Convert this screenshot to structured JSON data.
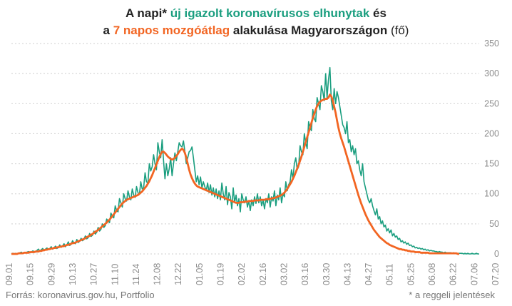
{
  "title": {
    "line1_prefix": "A napi* ",
    "line1_highlight": "új igazolt koronavírusos elhunytak",
    "line1_suffix": " és",
    "line2_prefix": "a ",
    "line2_highlight": "7 napos mozgóátlag",
    "line2_suffix": " alakulása Magyarországon ",
    "line2_unit": "(fő)"
  },
  "footer": {
    "source": "Forrás: koronavirus.gov.hu, Portfolio",
    "note": "* a reggeli jelentések"
  },
  "colors": {
    "daily": "#1a9e7f",
    "avg": "#f26522"
  },
  "chart_data": {
    "type": "line",
    "x_start": "2020.09.01",
    "xlabel": "",
    "ylabel": "",
    "ylim": [
      0,
      350
    ],
    "grid": true,
    "y_ticks": [
      "0",
      "50",
      "100",
      "150",
      "200",
      "250",
      "300",
      "350"
    ],
    "x_ticks": [
      "09.01",
      "09.15",
      "09.29",
      "10.13",
      "10.27",
      "11.10",
      "11.24",
      "12.08",
      "12.22",
      "01.05",
      "01.19",
      "02.02",
      "02.16",
      "03.02",
      "03.16",
      "03.30",
      "04.13",
      "04.27",
      "05.11",
      "05.25",
      "06.08",
      "06.22",
      "07.06",
      "07.20"
    ],
    "series": [
      {
        "name": "új igazolt koronavírusos elhunytak",
        "values": [
          0,
          1,
          0,
          1,
          0,
          1,
          2,
          3,
          1,
          2,
          2,
          3,
          4,
          2,
          3,
          5,
          4,
          3,
          6,
          8,
          5,
          7,
          9,
          6,
          8,
          10,
          7,
          9,
          12,
          8,
          10,
          13,
          9,
          11,
          15,
          11,
          13,
          17,
          12,
          15,
          20,
          14,
          16,
          22,
          18,
          17,
          24,
          19,
          21,
          26,
          22,
          24,
          30,
          25,
          27,
          34,
          29,
          31,
          38,
          33,
          36,
          44,
          38,
          41,
          50,
          44,
          47,
          58,
          55,
          52,
          68,
          62,
          60,
          80,
          72,
          70,
          92,
          85,
          78,
          100,
          92,
          88,
          105,
          95,
          90,
          108,
          98,
          94,
          112,
          102,
          99,
          120,
          108,
          110,
          135,
          120,
          118,
          150,
          138,
          145,
          165,
          150,
          140,
          185,
          170,
          160,
          190,
          155,
          125,
          150,
          130,
          142,
          160,
          130,
          150,
          168,
          155,
          170,
          185,
          180,
          178,
          188,
          170,
          150,
          160,
          170,
          172,
          178,
          160,
          140,
          120,
          130,
          115,
          128,
          110,
          120,
          112,
          105,
          118,
          102,
          115,
          98,
          110,
          95,
          108,
          92,
          105,
          90,
          118,
          100,
          90,
          112,
          82,
          102,
          95,
          75,
          110,
          85,
          98,
          80,
          92,
          70,
          100,
          90,
          85,
          95,
          78,
          88,
          72,
          90,
          80,
          95,
          84,
          100,
          85,
          95,
          80,
          90,
          75,
          92,
          85,
          100,
          78,
          95,
          88,
          105,
          80,
          98,
          90,
          110,
          85,
          100,
          95,
          120,
          105,
          115,
          120,
          140,
          125,
          150,
          160,
          140,
          145,
          180,
          170,
          165,
          200,
          185,
          175,
          220,
          210,
          205,
          240,
          225,
          220,
          260,
          250,
          240,
          280,
          270,
          255,
          300,
          260,
          290,
          310,
          255,
          240,
          275,
          250,
          270,
          260,
          245,
          230,
          215,
          210,
          200,
          220,
          185,
          190,
          170,
          180,
          165,
          175,
          150,
          155,
          140,
          130,
          150,
          120,
          110,
          100,
          90,
          85,
          92,
          80,
          72,
          65,
          75,
          58,
          62,
          50,
          55,
          45,
          48,
          38,
          42,
          35,
          40,
          30,
          34,
          28,
          30,
          24,
          26,
          20,
          22,
          18,
          20,
          16,
          18,
          14,
          15,
          12,
          13,
          10,
          11,
          9,
          10,
          8,
          9,
          7,
          8,
          6,
          7,
          5,
          6,
          5,
          5,
          4,
          4,
          3,
          4,
          3,
          3,
          2,
          3,
          2,
          2,
          2,
          2,
          1,
          2,
          1,
          1,
          1,
          1,
          1,
          1,
          0,
          1,
          0,
          1,
          0,
          0,
          1,
          0,
          0,
          1,
          0,
          0
        ]
      },
      {
        "name": "7 napos mozgóátlag",
        "values": [
          0,
          0,
          0,
          0,
          0,
          1,
          1,
          1,
          1,
          2,
          2,
          2,
          2,
          3,
          3,
          3,
          3,
          4,
          4,
          4,
          5,
          5,
          6,
          6,
          7,
          7,
          8,
          8,
          9,
          9,
          10,
          10,
          11,
          11,
          12,
          12,
          13,
          13,
          14,
          15,
          15,
          16,
          17,
          18,
          18,
          19,
          20,
          21,
          22,
          23,
          24,
          25,
          26,
          28,
          29,
          30,
          32,
          33,
          35,
          37,
          38,
          40,
          42,
          44,
          46,
          48,
          50,
          52,
          55,
          57,
          60,
          63,
          66,
          69,
          72,
          75,
          78,
          81,
          84,
          86,
          88,
          90,
          91,
          92,
          93,
          94,
          95,
          96,
          97,
          98,
          100,
          102,
          104,
          107,
          110,
          113,
          117,
          121,
          126,
          131,
          137,
          143,
          149,
          155,
          161,
          166,
          170,
          170,
          168,
          165,
          162,
          160,
          158,
          157,
          158,
          160,
          163,
          166,
          170,
          173,
          175,
          173,
          168,
          160,
          150,
          140,
          132,
          126,
          121,
          117,
          114,
          112,
          111,
          110,
          109,
          108,
          107,
          106,
          105,
          104,
          103,
          102,
          101,
          100,
          99,
          98,
          97,
          96,
          95,
          94,
          93,
          92,
          91,
          90,
          89,
          88,
          87,
          86,
          85,
          85,
          85,
          86,
          86,
          86,
          87,
          87,
          87,
          88,
          88,
          88,
          88,
          89,
          89,
          89,
          89,
          90,
          90,
          90,
          90,
          91,
          91,
          91,
          92,
          92,
          93,
          93,
          94,
          95,
          96,
          97,
          98,
          100,
          102,
          105,
          108,
          112,
          116,
          120,
          125,
          130,
          136,
          142,
          148,
          155,
          162,
          170,
          178,
          186,
          194,
          202,
          210,
          218,
          226,
          233,
          240,
          246,
          250,
          253,
          255,
          256,
          257,
          258,
          258,
          260,
          265,
          262,
          255,
          245,
          235,
          222,
          210,
          200,
          192,
          185,
          178,
          170,
          162,
          154,
          146,
          138,
          130,
          122,
          114,
          106,
          98,
          91,
          84,
          78,
          72,
          66,
          61,
          56,
          52,
          48,
          44,
          40,
          37,
          34,
          31,
          28,
          26,
          24,
          22,
          20,
          18,
          17,
          15,
          14,
          13,
          12,
          11,
          10,
          9,
          8,
          8,
          7,
          7,
          6,
          6,
          5,
          5,
          4,
          4,
          4,
          3,
          3,
          3,
          3,
          2,
          2,
          2,
          2,
          2,
          2,
          1,
          1,
          1,
          1,
          1,
          1,
          1,
          1,
          1,
          1,
          1,
          1,
          1,
          1,
          1,
          1,
          1,
          1,
          1,
          1,
          0,
          0
        ]
      }
    ]
  }
}
